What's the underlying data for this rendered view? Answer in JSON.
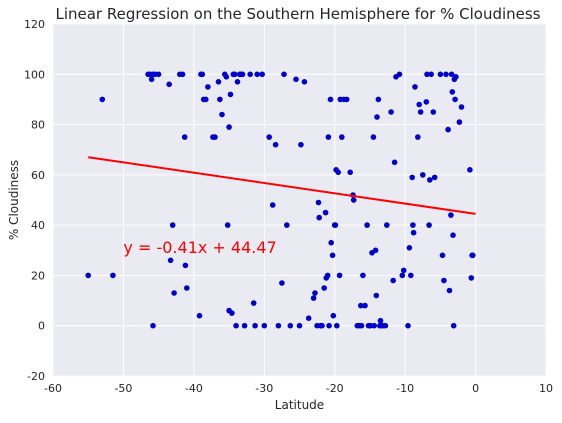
{
  "chart_data": {
    "type": "scatter",
    "title": "Linear Regression on the Southern Hemisphere for % Cloudiness",
    "xlabel": "Latitude",
    "ylabel": "% Cloudiness",
    "xlim": [
      -60,
      10
    ],
    "ylim": [
      -20,
      120
    ],
    "xticks": [
      -60,
      -50,
      -40,
      -30,
      -20,
      -10,
      0,
      10
    ],
    "yticks": [
      -20,
      0,
      20,
      40,
      60,
      80,
      100,
      120
    ],
    "grid": true,
    "background_color": "#eaeaf2",
    "grid_color": "#ffffff",
    "point_color": "#0000cc",
    "line_color": "#ff0000",
    "annotation": {
      "text": "y = -0.41x + 44.47",
      "x": -50,
      "y": 29,
      "color": "#ff0000"
    },
    "regression": {
      "slope": -0.41,
      "intercept": 44.47,
      "x_range": [
        -55,
        0
      ]
    },
    "points": [
      [
        -55,
        20
      ],
      [
        -53,
        90
      ],
      [
        -51.5,
        20
      ],
      [
        -46.5,
        100
      ],
      [
        -46.2,
        100
      ],
      [
        -46,
        98
      ],
      [
        -45.8,
        100
      ],
      [
        -45.5,
        100
      ],
      [
        -45.8,
        0
      ],
      [
        -45,
        100
      ],
      [
        -43.5,
        96
      ],
      [
        -43,
        40
      ],
      [
        -42.8,
        13
      ],
      [
        -43.3,
        26
      ],
      [
        -42,
        100
      ],
      [
        -41.6,
        100
      ],
      [
        -41.3,
        75
      ],
      [
        -41.2,
        24
      ],
      [
        -41,
        15
      ],
      [
        -39,
        100
      ],
      [
        -38.8,
        100
      ],
      [
        -38.6,
        90
      ],
      [
        -38.3,
        90
      ],
      [
        -38,
        95
      ],
      [
        -39.2,
        4
      ],
      [
        -37.3,
        75
      ],
      [
        -37,
        75
      ],
      [
        -36.5,
        97
      ],
      [
        -36.3,
        90
      ],
      [
        -36,
        84
      ],
      [
        -35.6,
        100
      ],
      [
        -35.4,
        99
      ],
      [
        -35.2,
        40
      ],
      [
        -35,
        6
      ],
      [
        -34.8,
        92
      ],
      [
        -34.6,
        5
      ],
      [
        -35,
        79
      ],
      [
        -34.4,
        100
      ],
      [
        -34.2,
        100
      ],
      [
        -34,
        0
      ],
      [
        -33.8,
        97
      ],
      [
        -33.5,
        100
      ],
      [
        -33.3,
        100
      ],
      [
        -33.1,
        100
      ],
      [
        -32.8,
        0
      ],
      [
        -32,
        100
      ],
      [
        -31.5,
        9
      ],
      [
        -31.3,
        0
      ],
      [
        -31,
        100
      ],
      [
        -30.3,
        100
      ],
      [
        -30,
        0
      ],
      [
        -29.3,
        75
      ],
      [
        -28.8,
        48
      ],
      [
        -28.4,
        72
      ],
      [
        -28,
        0
      ],
      [
        -27.5,
        17
      ],
      [
        -27.2,
        100
      ],
      [
        -26.8,
        40
      ],
      [
        -26.3,
        0
      ],
      [
        -25.5,
        98
      ],
      [
        -25,
        0
      ],
      [
        -24.8,
        72
      ],
      [
        -24.3,
        97
      ],
      [
        -23.7,
        3
      ],
      [
        -23,
        11
      ],
      [
        -22.8,
        13
      ],
      [
        -22.5,
        0
      ],
      [
        -22.3,
        49
      ],
      [
        -22.2,
        43
      ],
      [
        -22,
        0
      ],
      [
        -21.8,
        0
      ],
      [
        -21.5,
        15
      ],
      [
        -21.3,
        45
      ],
      [
        -21.2,
        19
      ],
      [
        -21,
        20
      ],
      [
        -20.9,
        75
      ],
      [
        -20.8,
        0
      ],
      [
        -20.6,
        90
      ],
      [
        -20.5,
        33
      ],
      [
        -20.3,
        28
      ],
      [
        -20.2,
        4
      ],
      [
        -20,
        40
      ],
      [
        -19.9,
        40
      ],
      [
        -19.8,
        62
      ],
      [
        -19.7,
        0
      ],
      [
        -19.5,
        61
      ],
      [
        -19.3,
        20
      ],
      [
        -19.2,
        90
      ],
      [
        -19,
        75
      ],
      [
        -18.7,
        90
      ],
      [
        -18.3,
        90
      ],
      [
        -17.8,
        61
      ],
      [
        -17.4,
        52
      ],
      [
        -17.3,
        50
      ],
      [
        -16.8,
        0
      ],
      [
        -16.5,
        0
      ],
      [
        -16.3,
        8
      ],
      [
        -16.2,
        0
      ],
      [
        -16,
        20
      ],
      [
        -15.7,
        8
      ],
      [
        -15.4,
        40
      ],
      [
        -15.2,
        0
      ],
      [
        -14.9,
        0
      ],
      [
        -14.7,
        29
      ],
      [
        -14.5,
        75
      ],
      [
        -14.4,
        0
      ],
      [
        -14.2,
        30
      ],
      [
        -14.1,
        12
      ],
      [
        -14,
        83
      ],
      [
        -13.8,
        90
      ],
      [
        -13.6,
        0
      ],
      [
        -13.5,
        2
      ],
      [
        -13.3,
        0
      ],
      [
        -13.2,
        0
      ],
      [
        -12.8,
        0
      ],
      [
        -12.6,
        40
      ],
      [
        -12,
        85
      ],
      [
        -11.7,
        18
      ],
      [
        -11.5,
        65
      ],
      [
        -11.3,
        99
      ],
      [
        -10.8,
        100
      ],
      [
        -10.4,
        20
      ],
      [
        -10.2,
        22
      ],
      [
        -9.6,
        0
      ],
      [
        -9.4,
        31
      ],
      [
        -9.2,
        20
      ],
      [
        -9,
        59
      ],
      [
        -8.9,
        40
      ],
      [
        -8.8,
        37
      ],
      [
        -8.6,
        95
      ],
      [
        -8.2,
        75
      ],
      [
        -8,
        88
      ],
      [
        -7.8,
        85
      ],
      [
        -7.5,
        60
      ],
      [
        -7,
        89
      ],
      [
        -6.9,
        100
      ],
      [
        -6.6,
        40
      ],
      [
        -6.3,
        100
      ],
      [
        -6.5,
        58
      ],
      [
        -6,
        85
      ],
      [
        -5.8,
        59
      ],
      [
        -5,
        100
      ],
      [
        -4.7,
        28
      ],
      [
        -4.5,
        18
      ],
      [
        -4.2,
        100
      ],
      [
        -3.9,
        78
      ],
      [
        -3.7,
        14
      ],
      [
        -3.5,
        44
      ],
      [
        -3.4,
        100
      ],
      [
        -3.3,
        93
      ],
      [
        -3.2,
        36
      ],
      [
        -3.1,
        0
      ],
      [
        -3,
        98
      ],
      [
        -2.9,
        90
      ],
      [
        -2.8,
        99
      ],
      [
        -2.3,
        81
      ],
      [
        -2,
        87
      ],
      [
        -0.8,
        62
      ],
      [
        -0.6,
        19
      ],
      [
        -0.5,
        28
      ],
      [
        -0.4,
        28
      ]
    ]
  }
}
